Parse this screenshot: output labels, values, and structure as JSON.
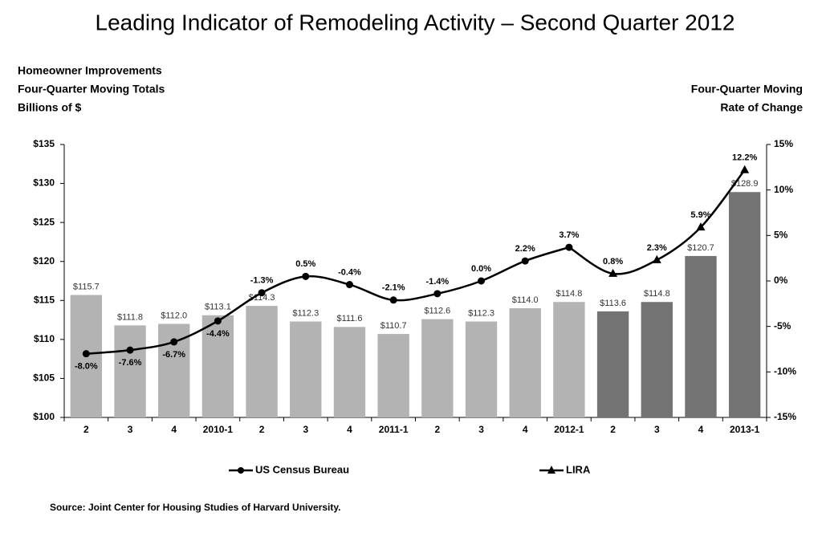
{
  "chart_data": {
    "type": "bar-line",
    "title": "Leading Indicator of Remodeling Activity – Second Quarter 2012",
    "y_axis_label": [
      "Homeowner Improvements",
      "Four-Quarter Moving Totals",
      "Billions of $"
    ],
    "y2_axis_label": [
      "Four-Quarter Moving",
      "Rate of Change"
    ],
    "source": "Source: Joint Center for Housing Studies of Harvard University.",
    "categories": [
      "2",
      "3",
      "4",
      "2010-1",
      "2",
      "3",
      "4",
      "2011-1",
      "2",
      "3",
      "4",
      "2012-1",
      "2",
      "3",
      "4",
      "2013-1"
    ],
    "bars": {
      "values": [
        115.7,
        111.8,
        112.0,
        113.1,
        114.3,
        112.3,
        111.6,
        110.7,
        112.6,
        112.3,
        114.0,
        114.8,
        113.6,
        114.8,
        120.7,
        128.9
      ],
      "value_labels": [
        "$115.7",
        "$111.8",
        "$112.0",
        "$113.1",
        "$114.3",
        "$112.3",
        "$111.6",
        "$110.7",
        "$112.6",
        "$112.3",
        "$114.0",
        "$114.8",
        "$113.6",
        "$114.8",
        "$120.7",
        "$128.9"
      ],
      "colors": [
        "#b3b3b3",
        "#b3b3b3",
        "#b3b3b3",
        "#b3b3b3",
        "#b3b3b3",
        "#b3b3b3",
        "#b3b3b3",
        "#b3b3b3",
        "#b3b3b3",
        "#b3b3b3",
        "#b3b3b3",
        "#b3b3b3",
        "#737373",
        "#737373",
        "#737373",
        "#737373"
      ]
    },
    "series": [
      {
        "name": "US Census Bureau",
        "color": "#000000",
        "marker": "circle",
        "axis": "y2",
        "values": [
          -8.0,
          -7.6,
          -6.7,
          -4.4,
          -1.3,
          0.5,
          -0.4,
          -2.1,
          -1.4,
          0.0,
          2.2,
          3.7,
          null,
          null,
          null,
          null
        ],
        "value_labels": [
          "-8.0%",
          "-7.6%",
          "-6.7%",
          "-4.4%",
          "-1.3%",
          "0.5%",
          "-0.4%",
          "-2.1%",
          "-1.4%",
          "0.0%",
          "2.2%",
          "3.7%",
          null,
          null,
          null,
          null
        ]
      },
      {
        "name": "LIRA",
        "color": "#000000",
        "marker": "triangle",
        "axis": "y2",
        "values": [
          null,
          null,
          null,
          null,
          null,
          null,
          null,
          null,
          null,
          null,
          null,
          3.7,
          0.8,
          2.3,
          5.9,
          12.2
        ],
        "value_labels": [
          null,
          null,
          null,
          null,
          null,
          null,
          null,
          null,
          null,
          null,
          null,
          null,
          "0.8%",
          "2.3%",
          "5.9%",
          "12.2%"
        ]
      }
    ],
    "ylim": [
      100,
      135
    ],
    "yticks": [
      {
        "value": 100,
        "label": "$100"
      },
      {
        "value": 105,
        "label": "$105"
      },
      {
        "value": 110,
        "label": "$110"
      },
      {
        "value": 115,
        "label": "$115"
      },
      {
        "value": 120,
        "label": "$120"
      },
      {
        "value": 125,
        "label": "$125"
      },
      {
        "value": 130,
        "label": "$130"
      },
      {
        "value": 135,
        "label": "$135"
      }
    ],
    "y2lim": [
      -15,
      15
    ],
    "y2ticks": [
      {
        "value": -15,
        "label": "-15%"
      },
      {
        "value": -10,
        "label": "-10%"
      },
      {
        "value": -5,
        "label": "-5%"
      },
      {
        "value": 0,
        "label": "0%"
      },
      {
        "value": 5,
        "label": "5%"
      },
      {
        "value": 10,
        "label": "10%"
      },
      {
        "value": 15,
        "label": "15%"
      }
    ],
    "grid": false
  }
}
